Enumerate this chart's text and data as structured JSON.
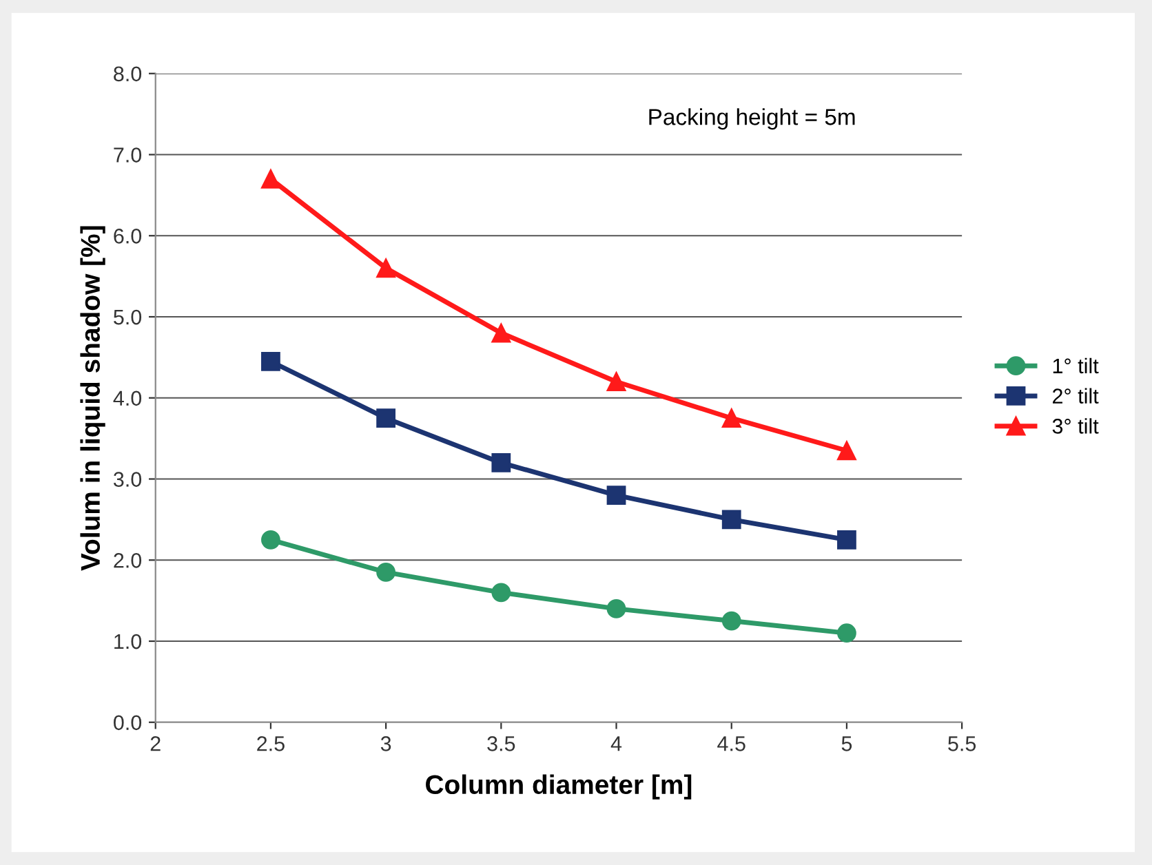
{
  "chart_data": {
    "type": "line",
    "xlabel": "Column diameter [m]",
    "ylabel": "Volum in liquid shadow [%]",
    "x": [
      2.5,
      3,
      3.5,
      4,
      4.5,
      5
    ],
    "series": [
      {
        "name": "1° tilt",
        "color": "#2e9a68",
        "marker": "circle",
        "values": [
          2.25,
          1.85,
          1.6,
          1.4,
          1.25,
          1.1
        ]
      },
      {
        "name": "2° tilt",
        "color": "#1c3471",
        "marker": "square",
        "values": [
          4.45,
          3.75,
          3.2,
          2.8,
          2.5,
          2.25
        ]
      },
      {
        "name": "3° tilt",
        "color": "#ff1a1a",
        "marker": "triangle",
        "values": [
          6.7,
          5.6,
          4.8,
          4.2,
          3.75,
          3.35
        ]
      }
    ],
    "xlim": [
      2,
      5.5
    ],
    "xticks": [
      2,
      2.5,
      3,
      3.5,
      4,
      4.5,
      5,
      5.5
    ],
    "ylim": [
      0,
      8
    ],
    "yticks": [
      {
        "value": 0,
        "label": "0.0"
      },
      {
        "value": 1,
        "label": "1.0"
      },
      {
        "value": 2,
        "label": "2.0"
      },
      {
        "value": 3,
        "label": "3.0"
      },
      {
        "value": 4,
        "label": "4.0"
      },
      {
        "value": 5,
        "label": "5.0"
      },
      {
        "value": 6,
        "label": "6.0"
      },
      {
        "value": 7,
        "label": "7.0"
      },
      {
        "value": 8,
        "label": "8.0"
      }
    ],
    "grid": "y",
    "legend": "right",
    "line_style": "solid",
    "annotations": [
      "Packing height = 5m"
    ]
  }
}
